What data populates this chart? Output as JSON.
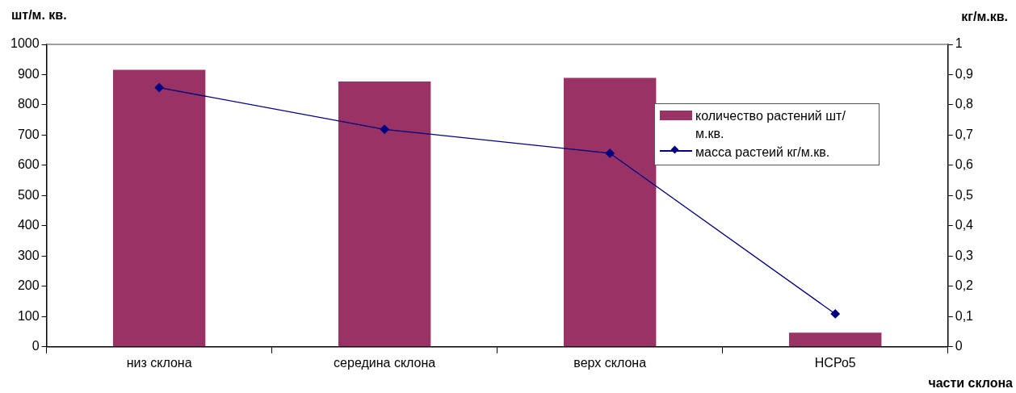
{
  "chart_data": {
    "type": "bar",
    "ylabel": "шт/м. кв.",
    "y2label": "кг/м.кв.",
    "xlabel": "части склона",
    "categories": [
      "низ склона",
      "середина склона",
      "верх склона",
      "НСРо5"
    ],
    "series": [
      {
        "name": "количество растений шт/м.кв.",
        "type": "bar",
        "color": "#993366",
        "values": [
          916,
          877,
          889,
          47
        ]
      },
      {
        "name": "масса растеий кг/м.кв.",
        "type": "line",
        "axis": "y2",
        "color": "#000080",
        "marker": "diamond",
        "line_style": "solid",
        "values": [
          0.857,
          0.719,
          0.64,
          0.109
        ]
      }
    ],
    "ylim": [
      0,
      1000
    ],
    "yticks": [
      0,
      100,
      200,
      300,
      400,
      500,
      600,
      700,
      800,
      900,
      1000
    ],
    "y2lim": [
      0,
      1
    ],
    "y2ticks": [
      0,
      {
        "value": 0.1,
        "label": "0,1"
      },
      {
        "value": 0.2,
        "label": "0,2"
      },
      {
        "value": 0.3,
        "label": "0,3"
      },
      {
        "value": 0.4,
        "label": "0,4"
      },
      {
        "value": 0.5,
        "label": "0,5"
      },
      {
        "value": 0.6,
        "label": "0,6"
      },
      {
        "value": 0.7,
        "label": "0,7"
      },
      {
        "value": 0.8,
        "label": "0,8"
      },
      {
        "value": 0.9,
        "label": "0,9"
      },
      1
    ],
    "grid": false,
    "legend": "top right"
  }
}
